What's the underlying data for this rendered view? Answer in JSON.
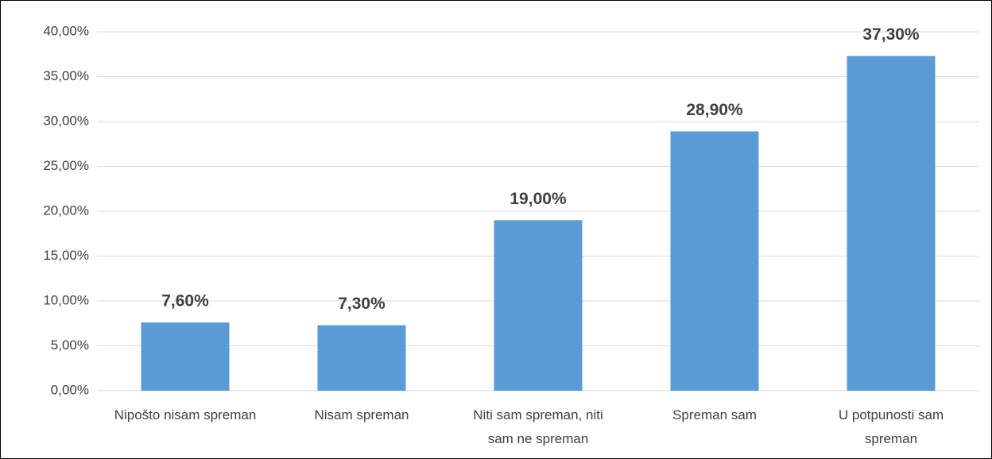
{
  "chart_data": {
    "type": "bar",
    "categories": [
      "Nipošto nisam spreman",
      "Nisam spreman",
      "Niti sam spreman, niti sam ne spreman",
      "Spreman sam",
      "U potpunosti sam spreman"
    ],
    "values": [
      7.6,
      7.3,
      19.0,
      28.9,
      37.3
    ],
    "value_labels": [
      "7,60%",
      "7,30%",
      "19,00%",
      "28,90%",
      "37,30%"
    ],
    "color": "#5b9bd5",
    "ylim": [
      0,
      40
    ],
    "yticks": [
      {
        "value": 0,
        "label": "0,00%"
      },
      {
        "value": 5,
        "label": "5,00%"
      },
      {
        "value": 10,
        "label": "10,00%"
      },
      {
        "value": 15,
        "label": "15,00%"
      },
      {
        "value": 20,
        "label": "20,00%"
      },
      {
        "value": 25,
        "label": "25,00%"
      },
      {
        "value": 30,
        "label": "30,00%"
      },
      {
        "value": 35,
        "label": "35,00%"
      },
      {
        "value": 40,
        "label": "40,00%"
      }
    ],
    "grid": true
  }
}
